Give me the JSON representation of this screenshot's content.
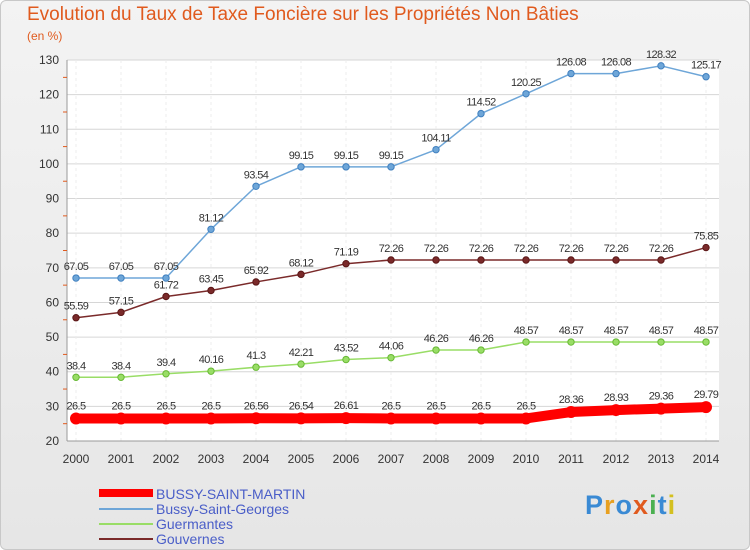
{
  "chart_data": {
    "type": "line",
    "title": "Evolution du Taux de Taxe Foncière sur les Propriétés Non Bâties",
    "unit_label": "(en %)",
    "x": [
      "2000",
      "2001",
      "2002",
      "2003",
      "2004",
      "2005",
      "2006",
      "2007",
      "2008",
      "2009",
      "2010",
      "2011",
      "2012",
      "2013",
      "2014"
    ],
    "ylim": [
      20,
      130
    ],
    "yticks": [
      20,
      30,
      40,
      50,
      60,
      70,
      80,
      90,
      100,
      110,
      120,
      130
    ],
    "grid": true,
    "legend_position": "bottom-left",
    "series": [
      {
        "name": "BUSSY-SAINT-MARTIN",
        "color": "#ff0000",
        "values": [
          26.5,
          26.5,
          26.5,
          26.5,
          26.56,
          26.54,
          26.61,
          26.5,
          26.5,
          26.5,
          26.5,
          28.36,
          28.93,
          29.36,
          29.79
        ],
        "labels": [
          "26.5",
          "26.5",
          "26.5",
          "26.5",
          "26.56",
          "26.54",
          "26.61",
          "26.5",
          "26.5",
          "26.5",
          "26.5",
          "28.36",
          "28.93",
          "29.36",
          "29.79"
        ]
      },
      {
        "name": "Bussy-Saint-Georges",
        "color": "#6ea6d8",
        "values": [
          67.05,
          67.05,
          67.05,
          81.12,
          93.54,
          99.15,
          99.15,
          99.15,
          104.11,
          114.52,
          120.25,
          126.08,
          126.08,
          128.32,
          125.17
        ],
        "labels": [
          "67.05",
          "67.05",
          "67.05",
          "81.12",
          "93.54",
          "99.15",
          "99.15",
          "99.15",
          "104.11",
          "114.52",
          "120.25",
          "126.08",
          "126.08",
          "128.32",
          "125.17"
        ]
      },
      {
        "name": "Guermantes",
        "color": "#99dd66",
        "values": [
          38.4,
          38.4,
          39.4,
          40.16,
          41.3,
          42.21,
          43.52,
          44.06,
          46.26,
          46.26,
          48.57,
          48.57,
          48.57,
          48.57,
          48.57
        ],
        "labels": [
          "38.4",
          "38.4",
          "39.4",
          "40.16",
          "41.3",
          "42.21",
          "43.52",
          "44.06",
          "46.26",
          "46.26",
          "48.57",
          "48.57",
          "48.57",
          "48.57",
          "48.57"
        ]
      },
      {
        "name": "Gouvernes",
        "color": "#7a2a2a",
        "values": [
          55.59,
          57.15,
          61.72,
          63.45,
          65.92,
          68.12,
          71.19,
          72.26,
          72.26,
          72.26,
          72.26,
          72.26,
          72.26,
          72.26,
          75.85
        ],
        "labels": [
          "55.59",
          "57.15",
          "61.72",
          "63.45",
          "65.92",
          "68.12",
          "71.19",
          "72.26",
          "72.26",
          "72.26",
          "72.26",
          "72.26",
          "72.26",
          "72.26",
          "75.85"
        ]
      }
    ]
  },
  "logo": {
    "letters": [
      "P",
      "r",
      "o",
      "x",
      "i",
      "t",
      "i"
    ],
    "colors": [
      "#3a8ad4",
      "#e8a020",
      "#3a8ad4",
      "#e05a1e",
      "#4ab050",
      "#3a8ad4",
      "#d4c020"
    ]
  }
}
